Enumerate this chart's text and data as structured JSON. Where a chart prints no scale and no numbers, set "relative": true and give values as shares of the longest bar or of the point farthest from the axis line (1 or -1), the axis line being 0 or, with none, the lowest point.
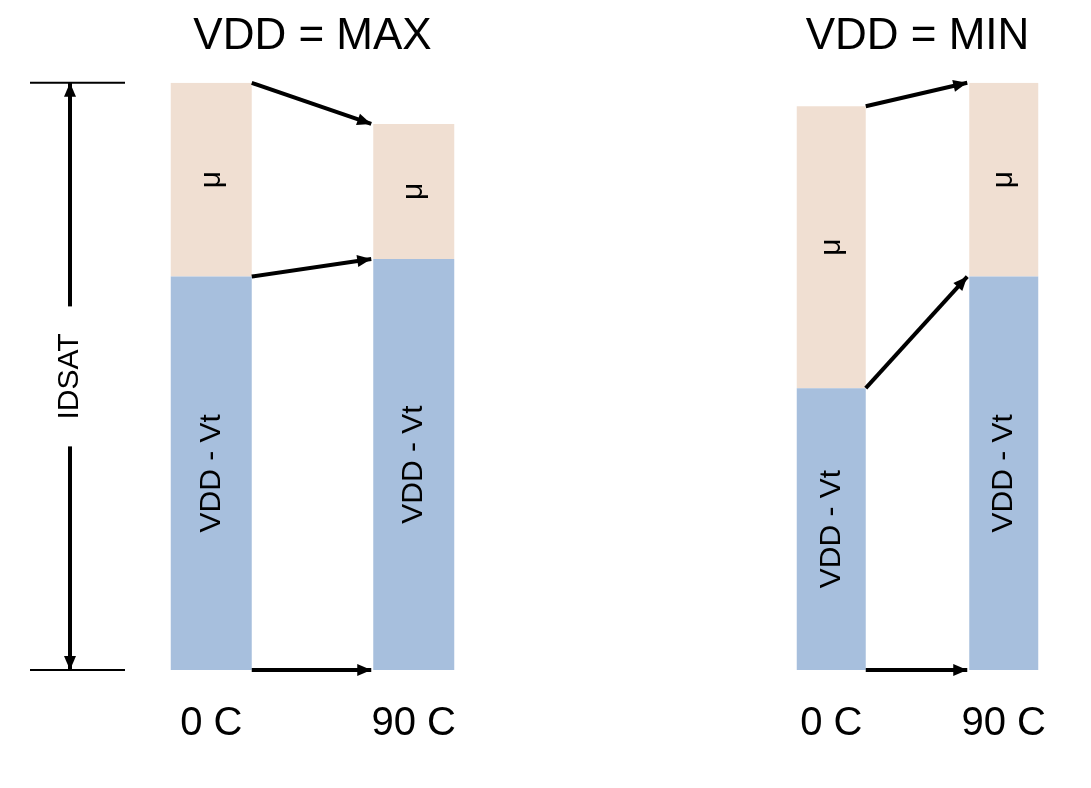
{
  "chart_data": [
    {
      "type": "bar",
      "title": "VDD = MAX",
      "ylabel": "IDSAT",
      "categories": [
        "0 C",
        "90 C"
      ],
      "stacked": true,
      "relative": true,
      "legend": false,
      "grid": false,
      "tick_labels": "x",
      "series": [
        {
          "name": "VDD - Vt",
          "color": "#a7bfdd",
          "values": [
            0.67,
            0.7
          ]
        },
        {
          "name": "μ",
          "color": "#f0dfd2",
          "values": [
            0.33,
            0.23
          ]
        }
      ]
    },
    {
      "type": "bar",
      "title": "VDD = MIN",
      "categories": [
        "0 C",
        "90 C"
      ],
      "stacked": true,
      "relative": true,
      "legend": false,
      "grid": false,
      "tick_labels": "x",
      "series": [
        {
          "name": "VDD - Vt",
          "color": "#a7bfdd",
          "values": [
            0.48,
            0.67
          ]
        },
        {
          "name": "μ",
          "color": "#f0dfd2",
          "values": [
            0.48,
            0.33
          ]
        }
      ]
    }
  ]
}
